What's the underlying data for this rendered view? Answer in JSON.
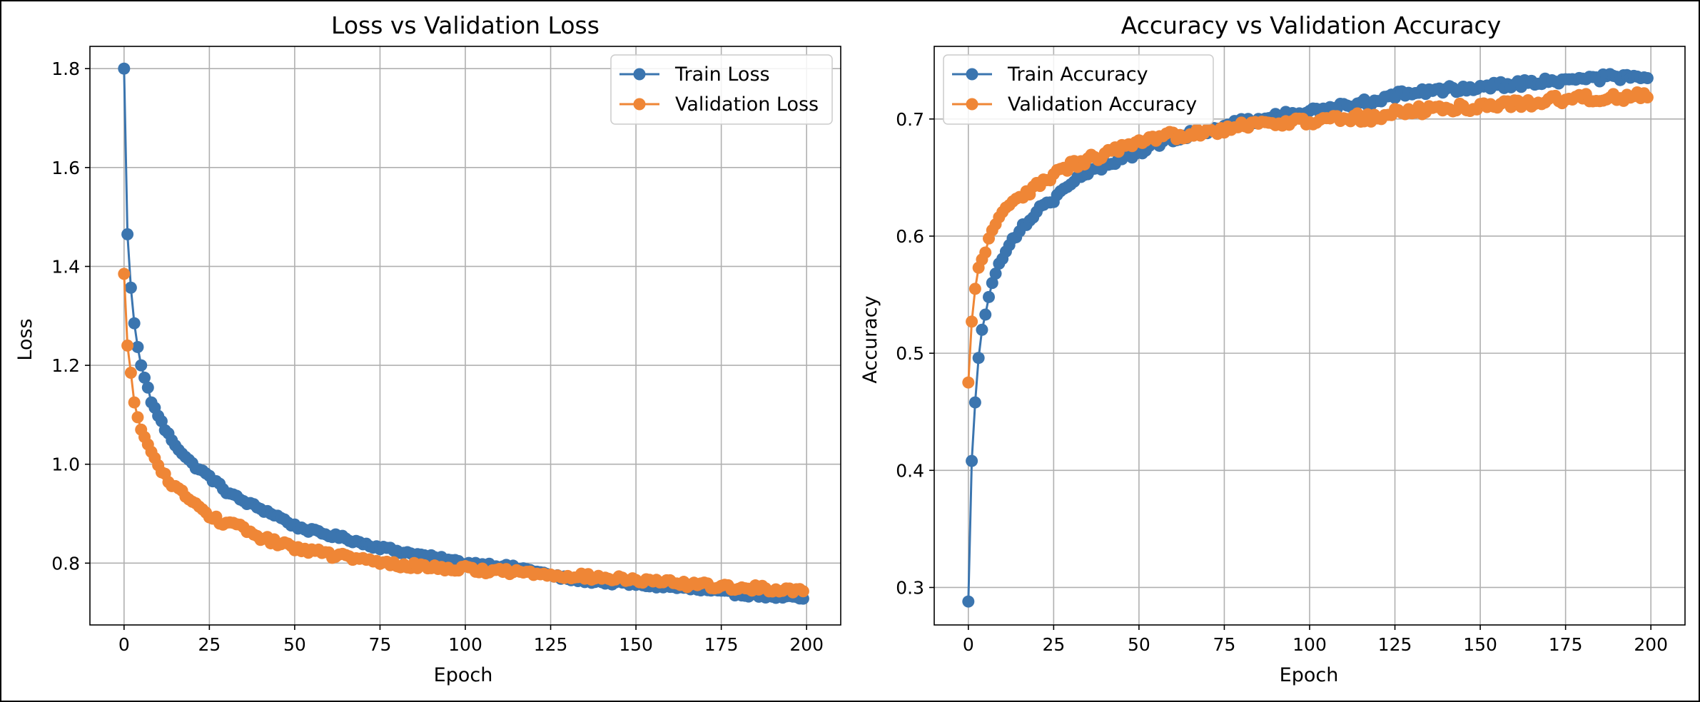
{
  "chart_data": [
    {
      "type": "line",
      "title": "Loss vs Validation Loss",
      "xlabel": "Epoch",
      "ylabel": "Loss",
      "xlim": [
        -10,
        210
      ],
      "ylim": [
        0.675,
        1.845
      ],
      "xticks": [
        0,
        25,
        50,
        75,
        100,
        125,
        150,
        175,
        200
      ],
      "yticks": [
        0.8,
        1.0,
        1.2,
        1.4,
        1.6,
        1.8
      ],
      "yticks_fmt": 1,
      "grid": true,
      "legend": "upper right",
      "series": [
        {
          "name": "Train Loss",
          "color": "#3b75af",
          "anchors": [
            [
              0,
              1.8
            ],
            [
              1,
              1.465
            ],
            [
              2,
              1.357
            ],
            [
              3,
              1.285
            ],
            [
              4,
              1.237
            ],
            [
              5,
              1.2
            ],
            [
              6,
              1.175
            ],
            [
              7,
              1.155
            ],
            [
              8,
              1.125
            ],
            [
              10,
              1.1
            ],
            [
              12,
              1.07
            ],
            [
              15,
              1.04
            ],
            [
              18,
              1.015
            ],
            [
              20,
              1.0
            ],
            [
              25,
              0.975
            ],
            [
              30,
              0.945
            ],
            [
              35,
              0.925
            ],
            [
              40,
              0.91
            ],
            [
              45,
              0.895
            ],
            [
              50,
              0.875
            ],
            [
              55,
              0.865
            ],
            [
              60,
              0.857
            ],
            [
              65,
              0.85
            ],
            [
              70,
              0.84
            ],
            [
              75,
              0.832
            ],
            [
              80,
              0.825
            ],
            [
              90,
              0.812
            ],
            [
              100,
              0.8
            ],
            [
              110,
              0.795
            ],
            [
              120,
              0.785
            ],
            [
              125,
              0.775
            ],
            [
              130,
              0.768
            ],
            [
              140,
              0.762
            ],
            [
              150,
              0.757
            ],
            [
              160,
              0.752
            ],
            [
              170,
              0.745
            ],
            [
              180,
              0.738
            ],
            [
              190,
              0.733
            ],
            [
              199,
              0.728
            ]
          ],
          "jitter": 0.004
        },
        {
          "name": "Validation Loss",
          "color": "#ef8636",
          "anchors": [
            [
              0,
              1.385
            ],
            [
              1,
              1.24
            ],
            [
              2,
              1.185
            ],
            [
              3,
              1.125
            ],
            [
              4,
              1.095
            ],
            [
              5,
              1.07
            ],
            [
              6,
              1.055
            ],
            [
              7,
              1.04
            ],
            [
              8,
              1.025
            ],
            [
              10,
              0.995
            ],
            [
              12,
              0.975
            ],
            [
              15,
              0.955
            ],
            [
              18,
              0.935
            ],
            [
              20,
              0.925
            ],
            [
              25,
              0.895
            ],
            [
              30,
              0.88
            ],
            [
              35,
              0.87
            ],
            [
              40,
              0.852
            ],
            [
              45,
              0.84
            ],
            [
              50,
              0.832
            ],
            [
              55,
              0.825
            ],
            [
              60,
              0.818
            ],
            [
              65,
              0.812
            ],
            [
              70,
              0.807
            ],
            [
              75,
              0.8
            ],
            [
              80,
              0.797
            ],
            [
              90,
              0.792
            ],
            [
              100,
              0.788
            ],
            [
              110,
              0.784
            ],
            [
              120,
              0.78
            ],
            [
              130,
              0.775
            ],
            [
              140,
              0.77
            ],
            [
              150,
              0.765
            ],
            [
              160,
              0.76
            ],
            [
              170,
              0.755
            ],
            [
              180,
              0.75
            ],
            [
              190,
              0.748
            ],
            [
              199,
              0.745
            ]
          ],
          "jitter": 0.006
        }
      ]
    },
    {
      "type": "line",
      "title": "Accuracy vs Validation Accuracy",
      "xlabel": "Epoch",
      "ylabel": "Accuracy",
      "xlim": [
        -10,
        210
      ],
      "ylim": [
        0.268,
        0.762
      ],
      "xticks": [
        0,
        25,
        50,
        75,
        100,
        125,
        150,
        175,
        200
      ],
      "yticks": [
        0.3,
        0.4,
        0.5,
        0.6,
        0.7
      ],
      "yticks_fmt": 1,
      "grid": true,
      "legend": "upper left",
      "series": [
        {
          "name": "Train Accuracy",
          "color": "#3b75af",
          "anchors": [
            [
              0,
              0.288
            ],
            [
              1,
              0.408
            ],
            [
              2,
              0.458
            ],
            [
              3,
              0.496
            ],
            [
              4,
              0.52
            ],
            [
              5,
              0.533
            ],
            [
              6,
              0.548
            ],
            [
              7,
              0.56
            ],
            [
              8,
              0.568
            ],
            [
              10,
              0.582
            ],
            [
              12,
              0.595
            ],
            [
              15,
              0.605
            ],
            [
              18,
              0.615
            ],
            [
              20,
              0.622
            ],
            [
              25,
              0.632
            ],
            [
              30,
              0.645
            ],
            [
              35,
              0.653
            ],
            [
              40,
              0.66
            ],
            [
              45,
              0.667
            ],
            [
              50,
              0.672
            ],
            [
              55,
              0.678
            ],
            [
              60,
              0.683
            ],
            [
              65,
              0.687
            ],
            [
              70,
              0.69
            ],
            [
              75,
              0.693
            ],
            [
              80,
              0.697
            ],
            [
              90,
              0.702
            ],
            [
              100,
              0.706
            ],
            [
              110,
              0.711
            ],
            [
              120,
              0.716
            ],
            [
              125,
              0.72
            ],
            [
              130,
              0.722
            ],
            [
              140,
              0.725
            ],
            [
              150,
              0.728
            ],
            [
              160,
              0.73
            ],
            [
              170,
              0.732
            ],
            [
              180,
              0.734
            ],
            [
              190,
              0.736
            ],
            [
              199,
              0.735
            ]
          ],
          "jitter": 0.003
        },
        {
          "name": "Validation Accuracy",
          "color": "#ef8636",
          "anchors": [
            [
              0,
              0.475
            ],
            [
              1,
              0.527
            ],
            [
              2,
              0.555
            ],
            [
              3,
              0.573
            ],
            [
              4,
              0.58
            ],
            [
              5,
              0.586
            ],
            [
              6,
              0.598
            ],
            [
              7,
              0.605
            ],
            [
              8,
              0.61
            ],
            [
              10,
              0.618
            ],
            [
              12,
              0.625
            ],
            [
              15,
              0.632
            ],
            [
              18,
              0.638
            ],
            [
              20,
              0.642
            ],
            [
              25,
              0.652
            ],
            [
              30,
              0.66
            ],
            [
              35,
              0.665
            ],
            [
              40,
              0.67
            ],
            [
              45,
              0.675
            ],
            [
              50,
              0.678
            ],
            [
              55,
              0.682
            ],
            [
              60,
              0.686
            ],
            [
              65,
              0.688
            ],
            [
              70,
              0.69
            ],
            [
              75,
              0.692
            ],
            [
              80,
              0.695
            ],
            [
              90,
              0.697
            ],
            [
              100,
              0.698
            ],
            [
              110,
              0.7
            ],
            [
              120,
              0.702
            ],
            [
              125,
              0.705
            ],
            [
              130,
              0.707
            ],
            [
              140,
              0.709
            ],
            [
              150,
              0.711
            ],
            [
              160,
              0.713
            ],
            [
              170,
              0.716
            ],
            [
              180,
              0.718
            ],
            [
              190,
              0.719
            ],
            [
              199,
              0.72
            ]
          ],
          "jitter": 0.004
        }
      ]
    }
  ]
}
